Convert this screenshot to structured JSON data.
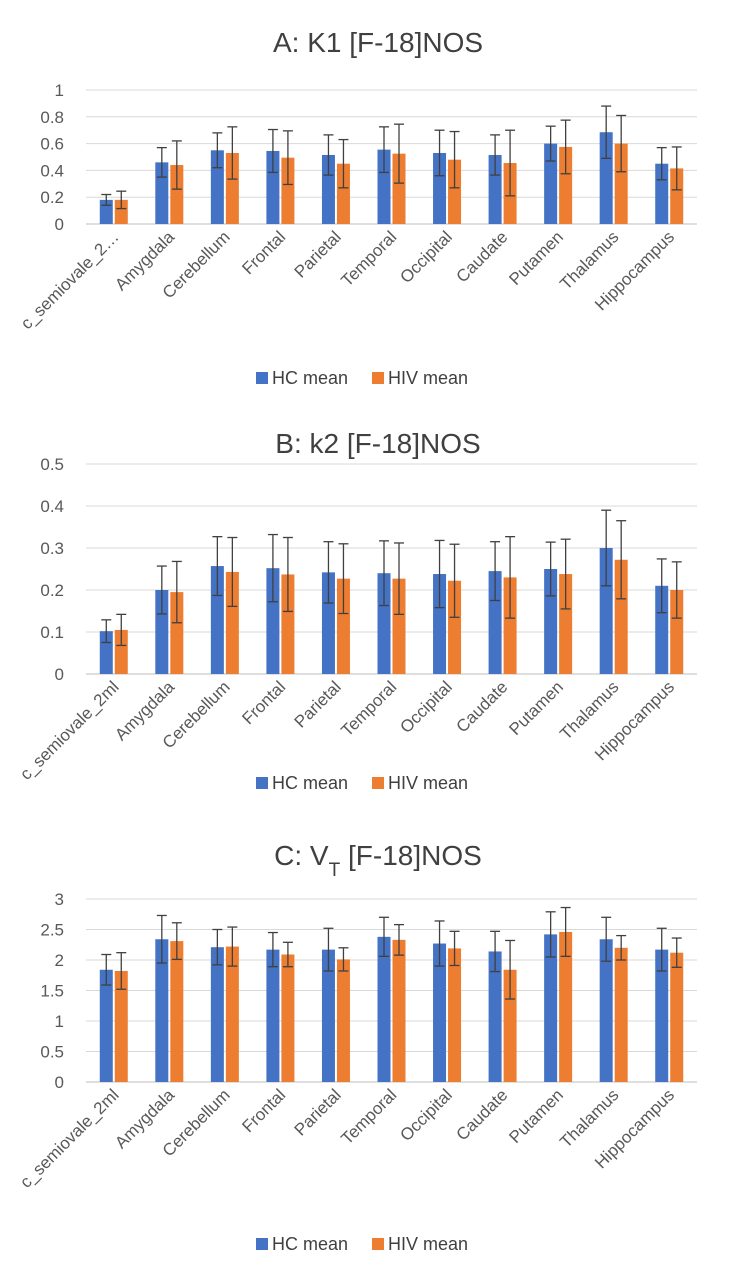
{
  "chart_data": [
    {
      "type": "bar",
      "title": "A: K1 [F-18]NOS",
      "categories": [
        "c_semiovale_2…",
        "Amygdala",
        "Cerebellum",
        "Frontal",
        "Parietal",
        "Temporal",
        "Occipital",
        "Caudate",
        "Putamen",
        "Thalamus",
        "Hippocampus"
      ],
      "series": [
        {
          "name": "HC mean",
          "color": "#4472c4",
          "values": [
            0.18,
            0.46,
            0.55,
            0.545,
            0.515,
            0.555,
            0.53,
            0.515,
            0.6,
            0.685,
            0.45
          ],
          "error": [
            0.04,
            0.11,
            0.13,
            0.16,
            0.15,
            0.17,
            0.17,
            0.15,
            0.13,
            0.195,
            0.12
          ]
        },
        {
          "name": "HIV mean",
          "color": "#ed7d31",
          "values": [
            0.18,
            0.44,
            0.53,
            0.495,
            0.45,
            0.525,
            0.48,
            0.455,
            0.575,
            0.6,
            0.415
          ],
          "error": [
            0.065,
            0.18,
            0.195,
            0.2,
            0.18,
            0.22,
            0.21,
            0.245,
            0.2,
            0.21,
            0.16
          ]
        }
      ],
      "ylim": [
        0,
        1
      ],
      "yticks": [
        "0",
        "0.2",
        "0.4",
        "0.6",
        "0.8",
        "1"
      ],
      "ytick_values": [
        0,
        0.2,
        0.4,
        0.6,
        0.8,
        1
      ],
      "grid": true,
      "legend": "bottom"
    },
    {
      "type": "bar",
      "title": "B: k2 [F-18]NOS",
      "categories": [
        "c_semiovale_2ml",
        "Amygdala",
        "Cerebellum",
        "Frontal",
        "Parietal",
        "Temporal",
        "Occipital",
        "Caudate",
        "Putamen",
        "Thalamus",
        "Hippocampus"
      ],
      "series": [
        {
          "name": "HC mean",
          "color": "#4472c4",
          "values": [
            0.102,
            0.2,
            0.257,
            0.252,
            0.242,
            0.24,
            0.238,
            0.245,
            0.25,
            0.3,
            0.21
          ],
          "error": [
            0.027,
            0.057,
            0.07,
            0.08,
            0.073,
            0.077,
            0.08,
            0.07,
            0.064,
            0.09,
            0.064
          ]
        },
        {
          "name": "HIV mean",
          "color": "#ed7d31",
          "values": [
            0.105,
            0.195,
            0.243,
            0.237,
            0.227,
            0.227,
            0.222,
            0.23,
            0.238,
            0.272,
            0.2
          ],
          "error": [
            0.037,
            0.073,
            0.082,
            0.088,
            0.083,
            0.085,
            0.087,
            0.097,
            0.083,
            0.093,
            0.067
          ]
        }
      ],
      "ylim": [
        0,
        0.5
      ],
      "yticks": [
        "0",
        "0.1",
        "0.2",
        "0.3",
        "0.4",
        "0.5"
      ],
      "ytick_values": [
        0,
        0.1,
        0.2,
        0.3,
        0.4,
        0.5
      ],
      "grid": true,
      "legend": "bottom"
    },
    {
      "type": "bar",
      "title": "C: V",
      "title_subscript": "T",
      "title_suffix": " [F-18]NOS",
      "categories": [
        "c_semiovale_2ml",
        "Amygdala",
        "Cerebellum",
        "Frontal",
        "Parietal",
        "Temporal",
        "Occipital",
        "Caudate",
        "Putamen",
        "Thalamus",
        "Hippocampus"
      ],
      "series": [
        {
          "name": "HC mean",
          "color": "#4472c4",
          "values": [
            1.84,
            2.34,
            2.21,
            2.17,
            2.17,
            2.38,
            2.27,
            2.14,
            2.42,
            2.34,
            2.17
          ],
          "error": [
            0.25,
            0.39,
            0.29,
            0.28,
            0.35,
            0.32,
            0.37,
            0.33,
            0.37,
            0.36,
            0.35
          ]
        },
        {
          "name": "HIV mean",
          "color": "#ed7d31",
          "values": [
            1.82,
            2.31,
            2.22,
            2.09,
            2.01,
            2.33,
            2.19,
            1.84,
            2.46,
            2.2,
            2.12
          ],
          "error": [
            0.3,
            0.3,
            0.32,
            0.2,
            0.19,
            0.25,
            0.28,
            0.48,
            0.4,
            0.2,
            0.24
          ]
        }
      ],
      "ylim": [
        0,
        3
      ],
      "yticks": [
        "0",
        "0.5",
        "1",
        "1.5",
        "2",
        "2.5",
        "3"
      ],
      "ytick_values": [
        0,
        0.5,
        1,
        1.5,
        2,
        2.5,
        3
      ],
      "grid": true,
      "legend": "bottom"
    }
  ]
}
